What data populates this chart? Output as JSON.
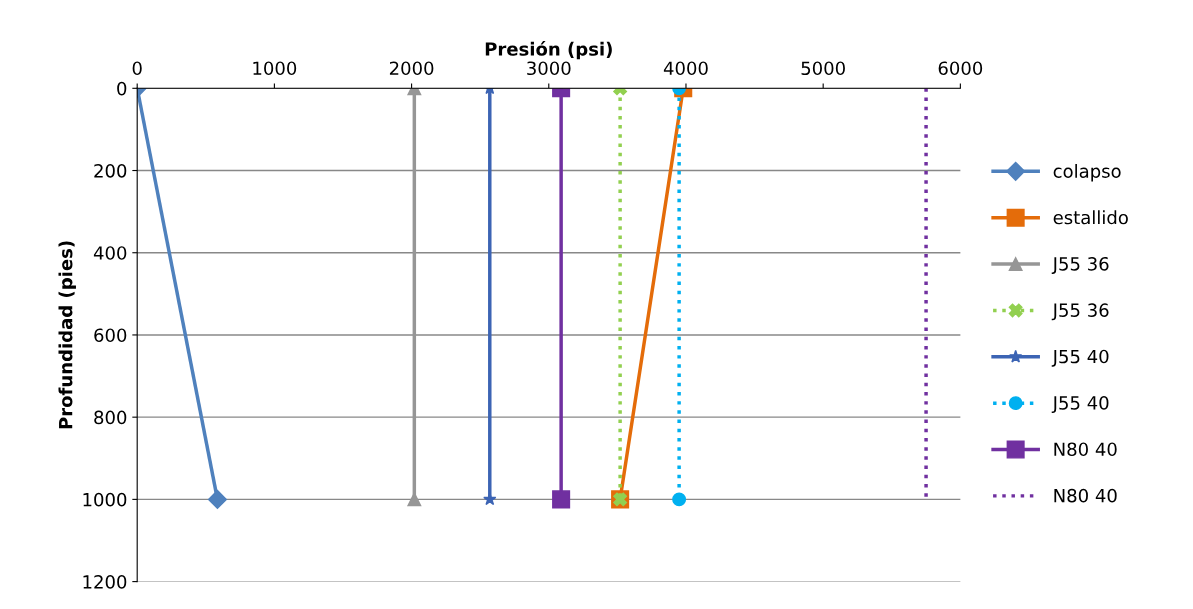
{
  "chart_data": {
    "type": "line",
    "xlabel": "Presión (psi)",
    "ylabel": "Profundidad (pies)",
    "xlim": [
      0,
      6000
    ],
    "xticks": [
      0,
      1000,
      2000,
      3000,
      4000,
      5000,
      6000
    ],
    "ylim": [
      1200,
      0
    ],
    "yticks": [
      0,
      200,
      400,
      600,
      800,
      1000,
      1200
    ],
    "grid": "y",
    "legend": "right",
    "series": [
      {
        "name": "colapso",
        "color": "#4f81bd",
        "x": [
          0,
          585
        ],
        "values": [
          0,
          1000
        ],
        "marker": "diamond",
        "line_style": "solid"
      },
      {
        "name": "estallido",
        "color": "#e46c0a",
        "x": [
          3980,
          3520
        ],
        "values": [
          0,
          1000
        ],
        "marker": "square",
        "line_style": "solid"
      },
      {
        "name": "J55 36",
        "color": "#969696",
        "x": [
          2020,
          2020
        ],
        "values": [
          0,
          1000
        ],
        "marker": "triangle",
        "line_style": "solid"
      },
      {
        "name": "J55 36",
        "color": "#92d050",
        "x": [
          3520,
          3520
        ],
        "values": [
          0,
          1000
        ],
        "marker": "cross",
        "line_style": "dotted"
      },
      {
        "name": "J55 40",
        "color": "#3c64b4",
        "x": [
          2570,
          2570
        ],
        "values": [
          0,
          1000
        ],
        "marker": "star",
        "line_style": "solid"
      },
      {
        "name": "J55 40",
        "color": "#00b0f0",
        "x": [
          3950,
          3950
        ],
        "values": [
          0,
          1000
        ],
        "marker": "circle",
        "line_style": "dotted"
      },
      {
        "name": "N80 40",
        "color": "#7030a0",
        "x": [
          3090,
          3090
        ],
        "values": [
          0,
          1000
        ],
        "marker": "square",
        "line_style": "solid"
      },
      {
        "name": "N80 40",
        "color": "#7030a0",
        "x": [
          5750,
          5750
        ],
        "values": [
          0,
          1000
        ],
        "marker": "none",
        "line_style": "dotted"
      }
    ]
  }
}
